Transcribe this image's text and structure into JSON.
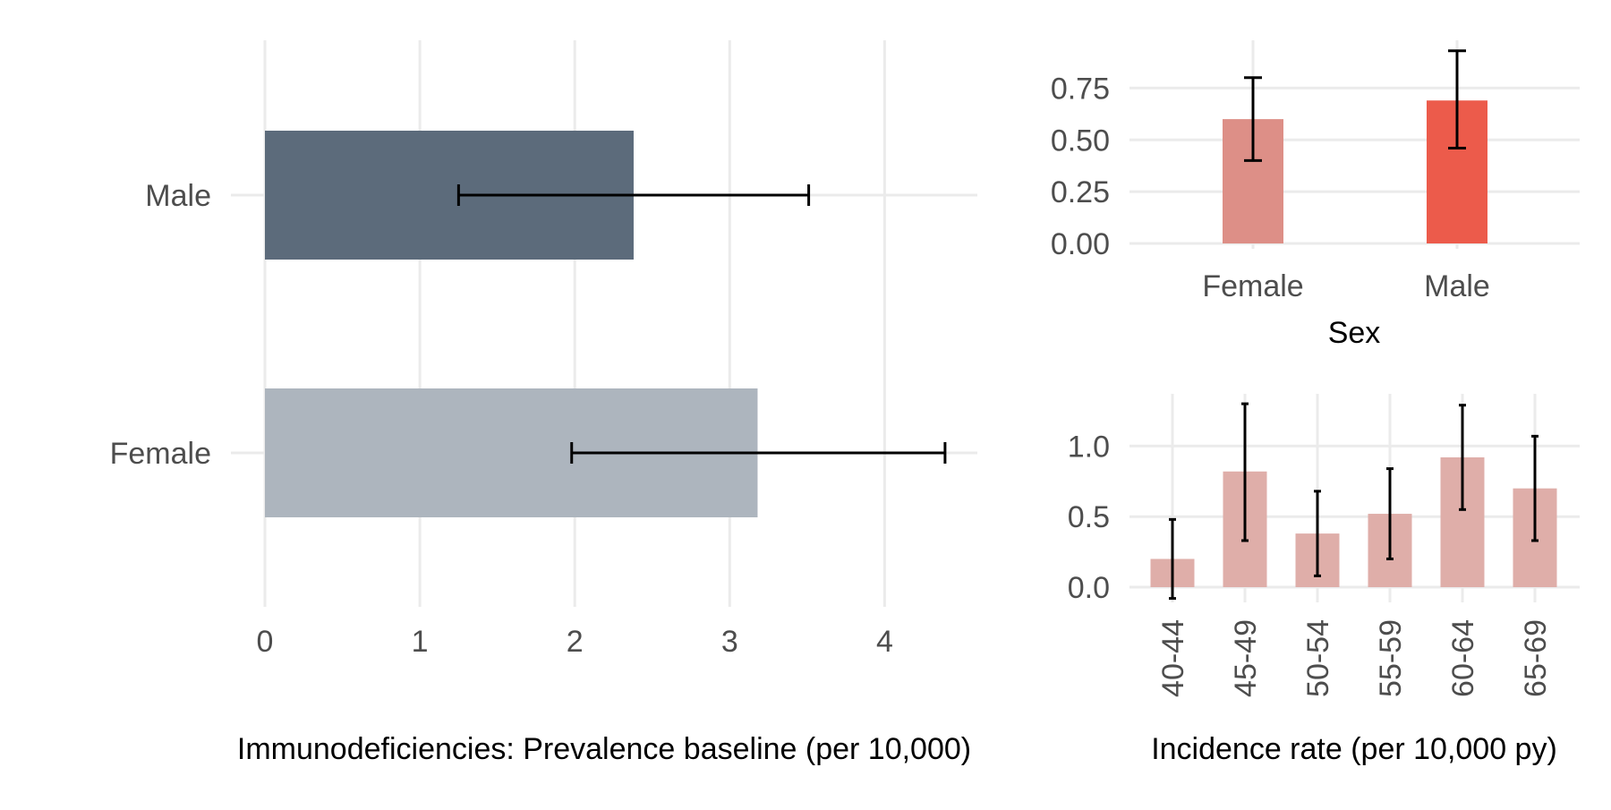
{
  "chart_data": [
    {
      "type": "bar",
      "orientation": "horizontal",
      "categories": [
        "Male",
        "Female"
      ],
      "values": [
        2.38,
        3.18
      ],
      "error_low": [
        1.25,
        1.98
      ],
      "error_high": [
        3.51,
        4.39
      ],
      "colors": [
        "#5c6b7b",
        "#adb5be"
      ],
      "xlabel": "Immunodeficiencies: Prevalence baseline (per 10,000)",
      "ylabel": "",
      "xticks": [
        "0",
        "1",
        "2",
        "3",
        "4"
      ],
      "xlim": [
        0,
        4.6
      ],
      "grid": true,
      "legend": "none"
    },
    {
      "type": "bar",
      "categories": [
        "Female",
        "Male"
      ],
      "values": [
        0.6,
        0.69
      ],
      "error_low": [
        0.4,
        0.46
      ],
      "error_high": [
        0.8,
        0.93
      ],
      "colors": [
        "#dd8f87",
        "#ec5b4b"
      ],
      "xlabel": "Sex",
      "ylabel": "",
      "yticks": [
        "0.00",
        "0.25",
        "0.50",
        "0.75"
      ],
      "ylim": [
        0,
        0.95
      ],
      "grid": true,
      "legend": "none"
    },
    {
      "type": "bar",
      "categories": [
        "40-44",
        "45-49",
        "50-54",
        "55-59",
        "60-64",
        "65-69"
      ],
      "values": [
        0.2,
        0.82,
        0.38,
        0.52,
        0.92,
        0.7
      ],
      "error_low": [
        -0.08,
        0.33,
        0.08,
        0.2,
        0.55,
        0.33
      ],
      "error_high": [
        0.48,
        1.3,
        0.68,
        0.84,
        1.29,
        1.07
      ],
      "colors": [
        "#dfaea9"
      ],
      "xlabel": "Incidence rate (per 10,000 py)",
      "ylabel": "",
      "yticks": [
        "0.0",
        "0.5",
        "1.0"
      ],
      "ylim": [
        -0.08,
        1.35
      ],
      "grid": true,
      "legend": "none"
    }
  ]
}
